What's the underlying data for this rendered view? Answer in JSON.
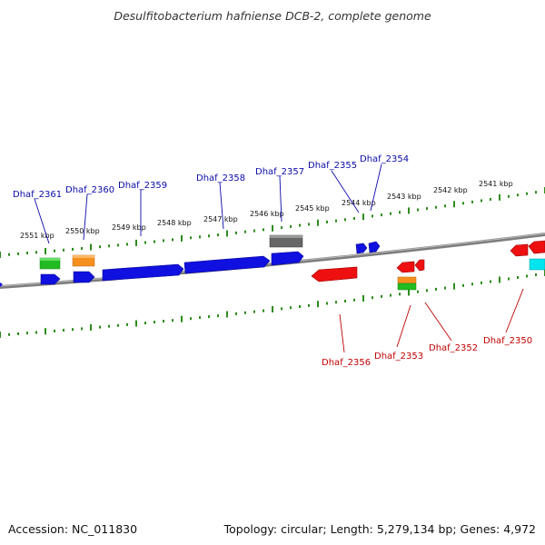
{
  "title": "Desulfitobacterium hafniense DCB-2, complete genome",
  "footer": {
    "accession": "Accession: NC_011830",
    "summary": "Topology: circular; Length: 5,279,134 bp; Genes: 4,972"
  },
  "colors": {
    "backbone": "#7d7d7d",
    "tick": "#2e8b1e",
    "forward_label": "#0a0aa8",
    "reverse_label": "#c00000",
    "forward_cds": "#1010e0",
    "reverse_cds": "#ee1010",
    "rna_green": "#22bb22",
    "rna_orange": "#f5901e",
    "pseudo_gray": "#666666",
    "cyan": "#00e5ee"
  },
  "ticks": [
    "2551 kbp",
    "2550 kbp",
    "2549 kbp",
    "2548 kbp",
    "2547 kbp",
    "2546 kbp",
    "2545 kbp",
    "2544 kbp",
    "2543 kbp",
    "2542 kbp",
    "2541 kbp"
  ],
  "forward_genes": [
    "Dhaf_2361",
    "Dhaf_2360",
    "Dhaf_2359",
    "Dhaf_2358",
    "Dhaf_2357",
    "Dhaf_2355",
    "Dhaf_2354"
  ],
  "reverse_genes": [
    "Dhaf_2356",
    "Dhaf_2353",
    "Dhaf_2352",
    "Dhaf_2350"
  ]
}
